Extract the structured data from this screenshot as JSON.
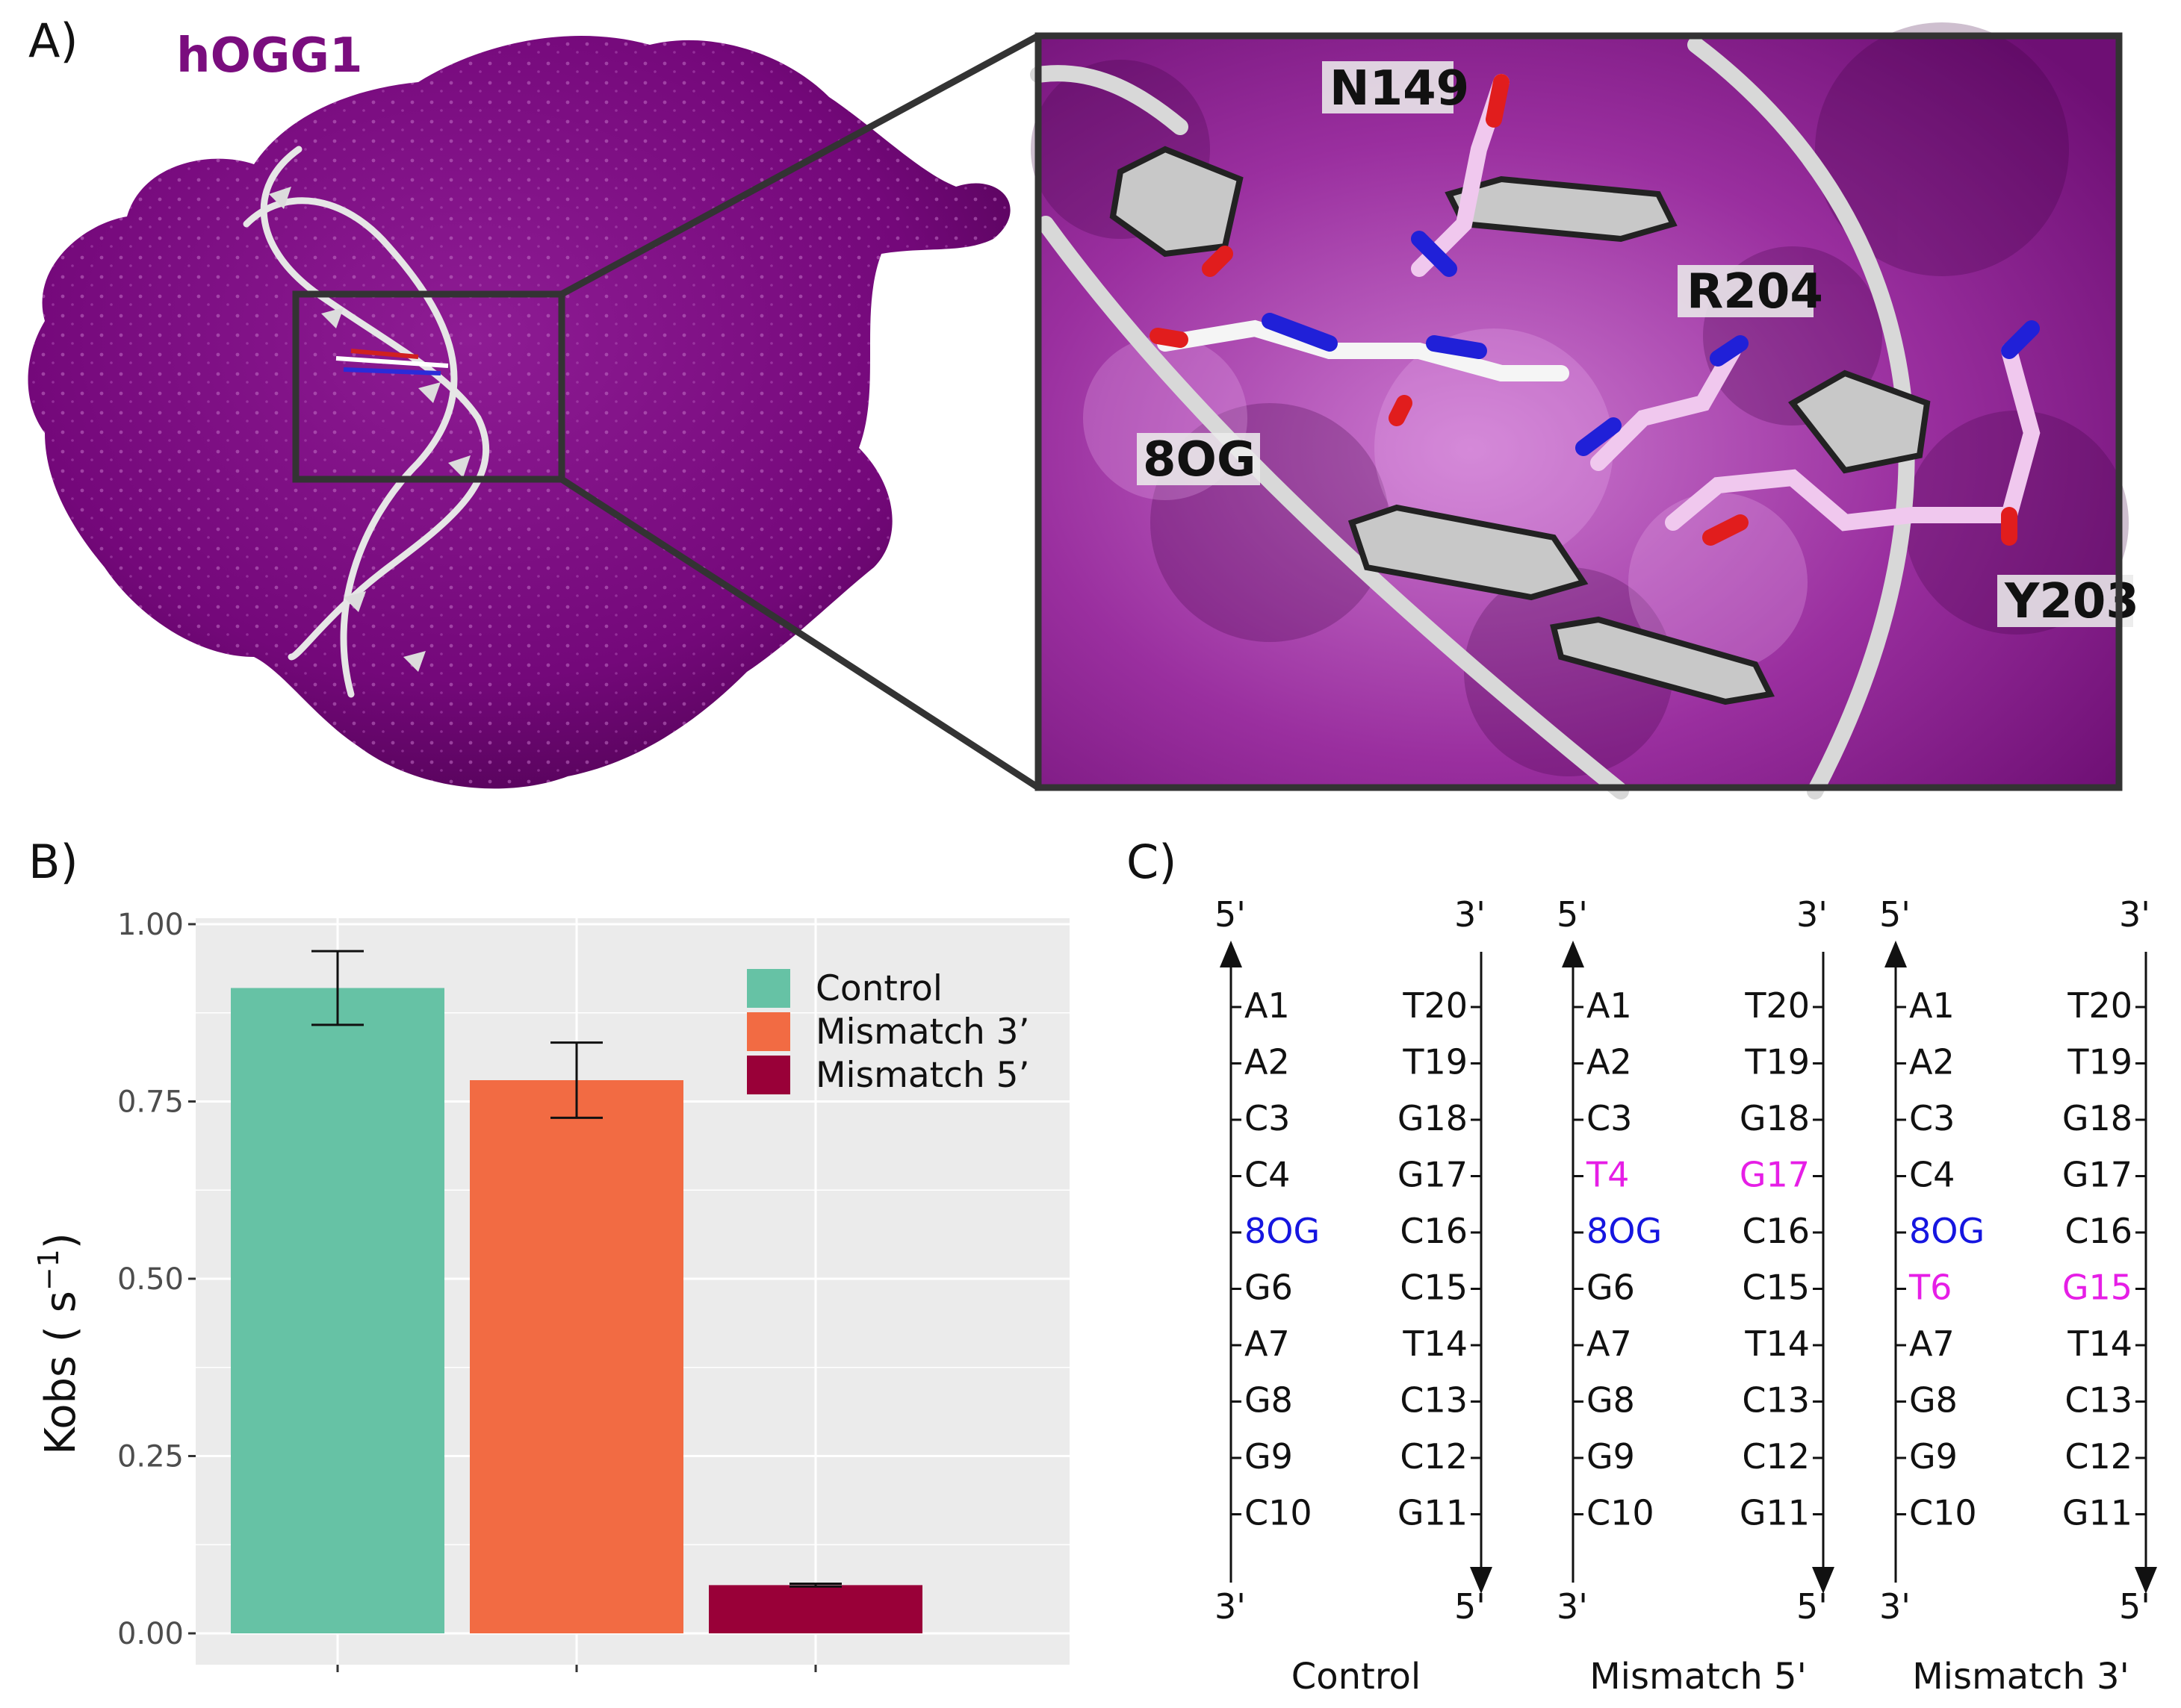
{
  "panels": {
    "a": "A)",
    "b": "B)",
    "c": "C)"
  },
  "structure": {
    "protein_label": "hOGG1",
    "protein_color": "#7a0d7e",
    "residue_labels": [
      "N149",
      "R204",
      "8OG",
      "Y203"
    ]
  },
  "chart_data": {
    "type": "bar",
    "categories": [
      "Control",
      "Mismatch 3'",
      "Mismatch 5'"
    ],
    "values": [
      0.91,
      0.78,
      0.068
    ],
    "error_low": [
      0.858,
      0.727,
      0.066
    ],
    "error_high": [
      0.962,
      0.833,
      0.07
    ],
    "colors": [
      "#66c2a5",
      "#f26b43",
      "#990038"
    ],
    "ylabel": "Kobs ( s",
    "ylabel_sup": "−1",
    "ylabel_close": ")",
    "ylim": [
      0,
      1.05
    ],
    "yticks": [
      0,
      0.25,
      0.5,
      0.75,
      1.0
    ],
    "ytick_labels": [
      "0.00",
      "0.25",
      "0.50",
      "0.75",
      "1.00"
    ],
    "legend": {
      "position": "top-right",
      "entries": [
        "Control",
        "Mismatch 3’",
        "Mismatch 5’"
      ]
    },
    "background": "#ebebeb",
    "grid": true
  },
  "sequences": {
    "end_labels": {
      "top_left": "5'",
      "top_right": "3'",
      "bottom_left": "3'",
      "bottom_right": "5'"
    },
    "highlight_colors": {
      "lesion": "#1515e0",
      "mismatch": "#e61ee6"
    },
    "duplexes": [
      {
        "title": "Control",
        "left": [
          "A1",
          "A2",
          "C3",
          "C4",
          "8OG",
          "G6",
          "A7",
          "G8",
          "G9",
          "C10"
        ],
        "right": [
          "T20",
          "T19",
          "G18",
          "G17",
          "C16",
          "C15",
          "T14",
          "C13",
          "C12",
          "G11"
        ],
        "left_colors": [
          "",
          "",
          "",
          "",
          "lesion",
          "",
          "",
          "",
          "",
          ""
        ],
        "right_colors": [
          "",
          "",
          "",
          "",
          "",
          "",
          "",
          "",
          "",
          ""
        ]
      },
      {
        "title": "Mismatch 5'",
        "left": [
          "A1",
          "A2",
          "C3",
          "T4",
          "8OG",
          "G6",
          "A7",
          "G8",
          "G9",
          "C10"
        ],
        "right": [
          "T20",
          "T19",
          "G18",
          "G17",
          "C16",
          "C15",
          "T14",
          "C13",
          "C12",
          "G11"
        ],
        "left_colors": [
          "",
          "",
          "",
          "mismatch",
          "lesion",
          "",
          "",
          "",
          "",
          ""
        ],
        "right_colors": [
          "",
          "",
          "",
          "mismatch",
          "",
          "",
          "",
          "",
          "",
          ""
        ]
      },
      {
        "title": "Mismatch 3'",
        "left": [
          "A1",
          "A2",
          "C3",
          "C4",
          "8OG",
          "T6",
          "A7",
          "G8",
          "G9",
          "C10"
        ],
        "right": [
          "T20",
          "T19",
          "G18",
          "G17",
          "C16",
          "G15",
          "T14",
          "C13",
          "C12",
          "G11"
        ],
        "left_colors": [
          "",
          "",
          "",
          "",
          "lesion",
          "mismatch",
          "",
          "",
          "",
          ""
        ],
        "right_colors": [
          "",
          "",
          "",
          "",
          "",
          "mismatch",
          "",
          "",
          "",
          ""
        ]
      }
    ]
  }
}
